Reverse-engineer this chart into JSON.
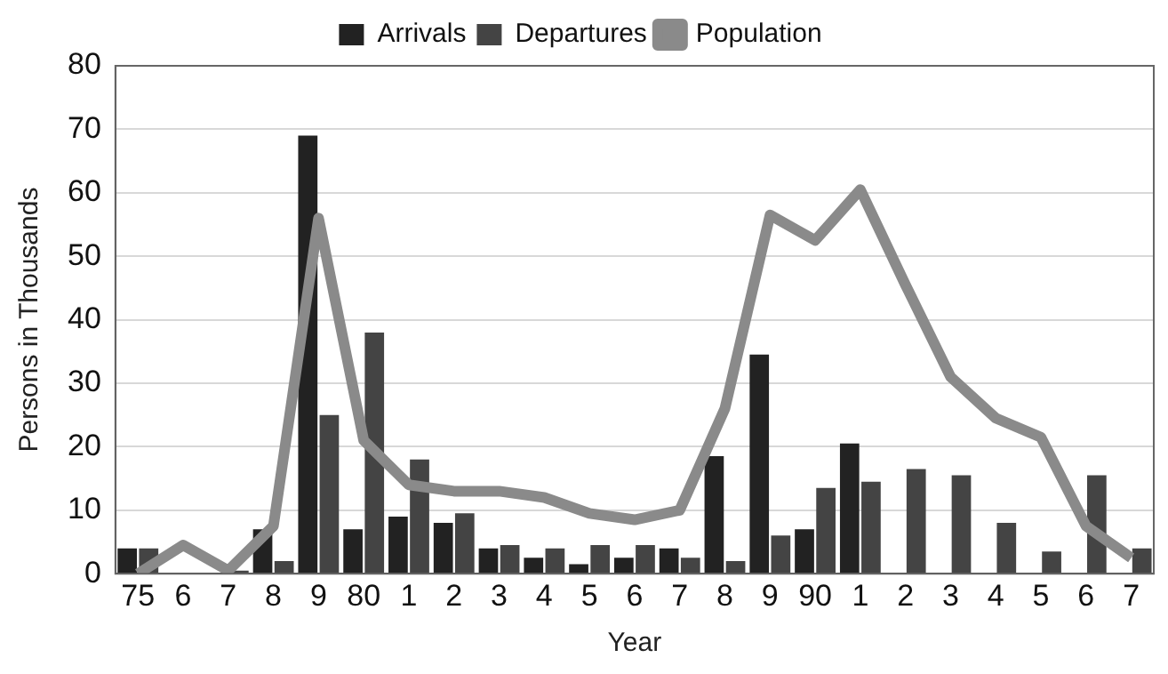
{
  "chart_data": {
    "type": "bar",
    "xlabel": "Year",
    "ylabel": "Persons in Thousands",
    "categories": [
      "75",
      "6",
      "7",
      "8",
      "9",
      "80",
      "1",
      "2",
      "3",
      "4",
      "5",
      "6",
      "7",
      "8",
      "9",
      "90",
      "1",
      "2",
      "3",
      "4",
      "5",
      "6",
      "7"
    ],
    "series": [
      {
        "name": "Arrivals",
        "color": "#222222",
        "values": [
          4,
          null,
          null,
          7,
          69,
          7,
          9,
          8,
          4,
          2.5,
          1.5,
          2.5,
          4,
          18.5,
          34.5,
          7,
          20.5,
          0,
          0,
          null,
          null,
          0,
          0
        ]
      },
      {
        "name": "Departures",
        "color": "#444444",
        "values": [
          4,
          null,
          0.5,
          2,
          25,
          38,
          18,
          9.5,
          4.5,
          4,
          4.5,
          4.5,
          2.5,
          2,
          6,
          13.5,
          14.5,
          16.5,
          15.5,
          8,
          3.5,
          15.5,
          4
        ]
      },
      {
        "name": "Population",
        "type": "line",
        "color": "#8a8a8a",
        "values": [
          0,
          4.5,
          0.5,
          7.5,
          56,
          21,
          14,
          13,
          13,
          12,
          9.5,
          8.5,
          10,
          26,
          56.5,
          52.5,
          60.5,
          45.5,
          31,
          24.5,
          21.5,
          7.5,
          2.5
        ]
      }
    ],
    "ylim": [
      0,
      80
    ],
    "yticks": [
      0,
      10,
      20,
      30,
      40,
      50,
      60,
      70,
      80
    ],
    "grid": "y",
    "legend": "top",
    "marker": "none"
  }
}
